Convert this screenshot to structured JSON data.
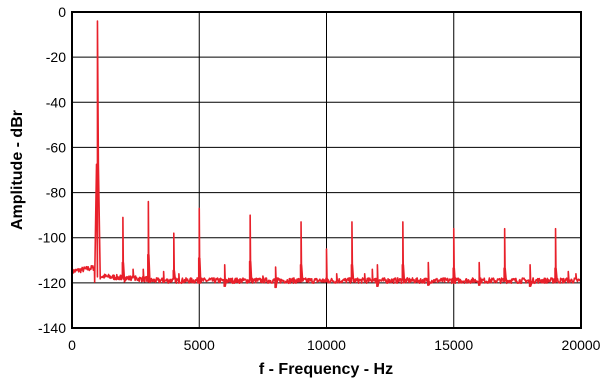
{
  "chart_data": {
    "type": "line",
    "title": "",
    "xlabel": "f - Frequency - Hz",
    "ylabel": "Amplitude - dBr",
    "xlim": [
      0,
      20000
    ],
    "ylim": [
      -140,
      0
    ],
    "x_ticks": [
      0,
      5000,
      10000,
      15000,
      20000
    ],
    "y_ticks": [
      0,
      -20,
      -40,
      -60,
      -80,
      -100,
      -120,
      -140
    ],
    "grid": true,
    "line_color": "#e8202a",
    "noise_floor_db": -119,
    "peaks": [
      {
        "x": 1000,
        "y": -4
      },
      {
        "x": 2000,
        "y": -91
      },
      {
        "x": 3000,
        "y": -84
      },
      {
        "x": 4000,
        "y": -98
      },
      {
        "x": 5000,
        "y": -87
      },
      {
        "x": 6000,
        "y": -112
      },
      {
        "x": 7000,
        "y": -90
      },
      {
        "x": 8000,
        "y": -113
      },
      {
        "x": 9000,
        "y": -93
      },
      {
        "x": 10000,
        "y": -105
      },
      {
        "x": 11000,
        "y": -93
      },
      {
        "x": 12000,
        "y": -112
      },
      {
        "x": 13000,
        "y": -93
      },
      {
        "x": 14000,
        "y": -111
      },
      {
        "x": 15000,
        "y": -96
      },
      {
        "x": 16000,
        "y": -111
      },
      {
        "x": 17000,
        "y": -96
      },
      {
        "x": 18000,
        "y": -112
      },
      {
        "x": 19000,
        "y": -96
      }
    ],
    "minor_peaks": [
      {
        "x": 2400,
        "y": -114
      },
      {
        "x": 2800,
        "y": -114
      },
      {
        "x": 3600,
        "y": -115
      },
      {
        "x": 4200,
        "y": -116
      },
      {
        "x": 5400,
        "y": -118
      },
      {
        "x": 7500,
        "y": -117
      },
      {
        "x": 10400,
        "y": -116
      },
      {
        "x": 11500,
        "y": -116
      },
      {
        "x": 11800,
        "y": -114
      },
      {
        "x": 19500,
        "y": -115
      },
      {
        "x": 19800,
        "y": -116
      }
    ]
  }
}
